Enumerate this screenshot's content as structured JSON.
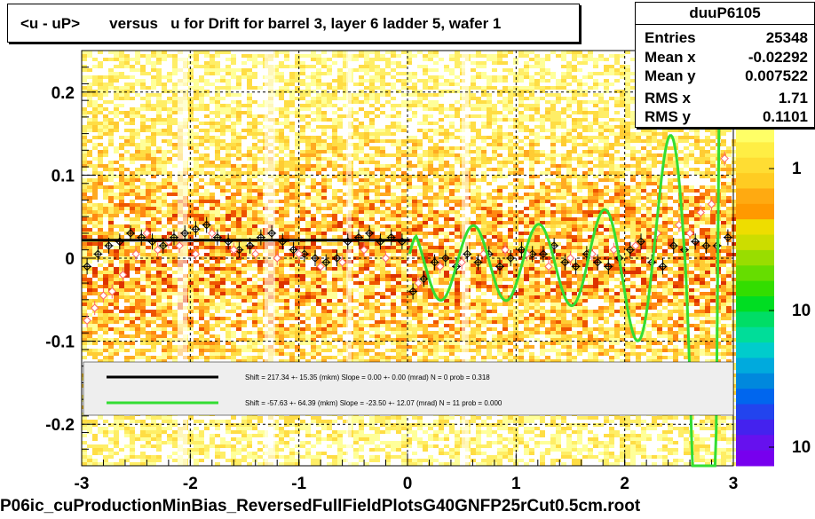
{
  "title": "<u - uP>       versus   u for Drift for barrel 3, layer 6 ladder 5, wafer 1",
  "stats": {
    "name": "duuP6105",
    "rows": [
      {
        "label": "Entries",
        "value": "25348"
      },
      {
        "label": "Mean x",
        "value": "-0.02292"
      },
      {
        "label": "Mean y",
        "value": "0.007522"
      },
      {
        "label": "RMS x",
        "value": "1.71"
      },
      {
        "label": "RMS y",
        "value": "0.1101"
      }
    ]
  },
  "filename": "P06ic_cuProductionMinBias_ReversedFullFieldPlotsG40GNFP25rCut0.5cm.root",
  "colors": {
    "black_fit": "#000000",
    "green_fit": "#33dd33",
    "legend_bg": "#eeeeee",
    "marker_red": "#ff6666"
  },
  "chart_data": {
    "type": "heatmap",
    "title": "<u - uP>       versus   u for Drift for barrel 3, layer 6 ladder 5, wafer 1",
    "xlim": [
      -3,
      3
    ],
    "ylim": [
      -0.25,
      0.25
    ],
    "x_ticks": [
      "-3",
      "-2",
      "-1",
      "0",
      "1",
      "2",
      "3"
    ],
    "y_ticks": [
      "-0.2",
      "-0.1",
      "0",
      "0.1",
      "0.2"
    ],
    "z_ticks": [
      "1",
      "10",
      "10"
    ],
    "grid": true,
    "legend": [
      {
        "label": "Shift =   217.34 +- 15.35 (mkm) Slope =     0.00 +- 0.00 (mrad)  N = 0 prob = 0.318",
        "color": "#000000"
      },
      {
        "label": "Shift =   -57.63 +- 64.39 (mkm) Slope =   -23.50 +- 12.07 (mrad)  N = 11 prob = 0.000",
        "color": "#33dd33"
      }
    ],
    "profile_black": {
      "x": [
        -2.95,
        -2.85,
        -2.75,
        -2.65,
        -2.55,
        -2.45,
        -2.35,
        -2.25,
        -2.15,
        -2.05,
        -1.95,
        -1.85,
        -1.75,
        -1.65,
        -1.55,
        -1.45,
        -1.35,
        -1.25,
        -1.15,
        -1.05,
        -0.95,
        -0.85,
        -0.75,
        -0.65,
        -0.55,
        -0.45,
        -0.35,
        -0.25,
        -0.15,
        -0.05,
        0.05,
        0.15,
        0.25,
        0.35,
        0.45,
        0.55,
        0.65,
        0.75,
        0.85,
        0.95,
        1.05,
        1.15,
        1.25,
        1.35,
        1.45,
        1.55,
        1.65,
        1.75,
        1.85,
        1.95,
        2.05,
        2.15,
        2.25,
        2.35,
        2.45,
        2.55,
        2.65,
        2.75,
        2.85,
        2.95
      ],
      "y": [
        -0.01,
        0.005,
        0.015,
        0.02,
        0.03,
        0.025,
        0.02,
        0.015,
        0.025,
        0.03,
        0.035,
        0.04,
        0.025,
        0.02,
        0.01,
        0.015,
        0.025,
        0.03,
        0.02,
        0.01,
        0.005,
        0.0,
        -0.005,
        0.0,
        0.02,
        0.025,
        0.03,
        0.02,
        0.025,
        0.02,
        -0.04,
        -0.025,
        -0.005,
        0.0,
        -0.01,
        0.005,
        -0.005,
        0.005,
        -0.01,
        0.0,
        0.01,
        0.005,
        0.005,
        0.015,
        -0.005,
        -0.01,
        0.005,
        -0.005,
        -0.01,
        0.0,
        0.01,
        0.02,
        -0.005,
        -0.01,
        0.015,
        0.01,
        0.02,
        0.015,
        0.015,
        0.025
      ]
    },
    "profile_red": {
      "x": [
        -2.95,
        -2.88,
        -2.8,
        -2.72,
        -2.62,
        -2.5,
        -2.4,
        -2.3,
        -2.2,
        -2.1,
        -1.95,
        -1.8,
        -1.6,
        -1.4,
        -1.2,
        -1.0,
        -0.8,
        -0.6,
        -0.4,
        -0.2,
        0.1,
        0.3,
        0.5,
        0.7,
        0.9,
        1.1,
        1.3,
        1.5,
        1.7,
        1.9,
        2.1,
        2.3,
        2.5,
        2.6,
        2.7,
        2.8,
        2.92
      ],
      "y": [
        -0.075,
        -0.06,
        -0.045,
        -0.04,
        -0.02,
        0.005,
        0.03,
        0.01,
        0.02,
        0.015,
        0.005,
        0.03,
        0.01,
        0.005,
        0.0,
        0.005,
        -0.01,
        -0.005,
        0.01,
        0.0,
        -0.03,
        -0.01,
        -0.005,
        0.005,
        0.01,
        0.005,
        -0.01,
        0.0,
        0.005,
        0.01,
        0.015,
        0.03,
        0.04,
        0.03,
        0.055,
        0.065,
        0.12
      ]
    },
    "fit_black": {
      "x": [
        -3,
        0.02
      ],
      "y": [
        0.0217,
        0.0217
      ]
    },
    "fit_green": {
      "x_range": [
        0.02,
        2.98
      ],
      "shift": -0.0058,
      "slope": -0.0235
    }
  }
}
